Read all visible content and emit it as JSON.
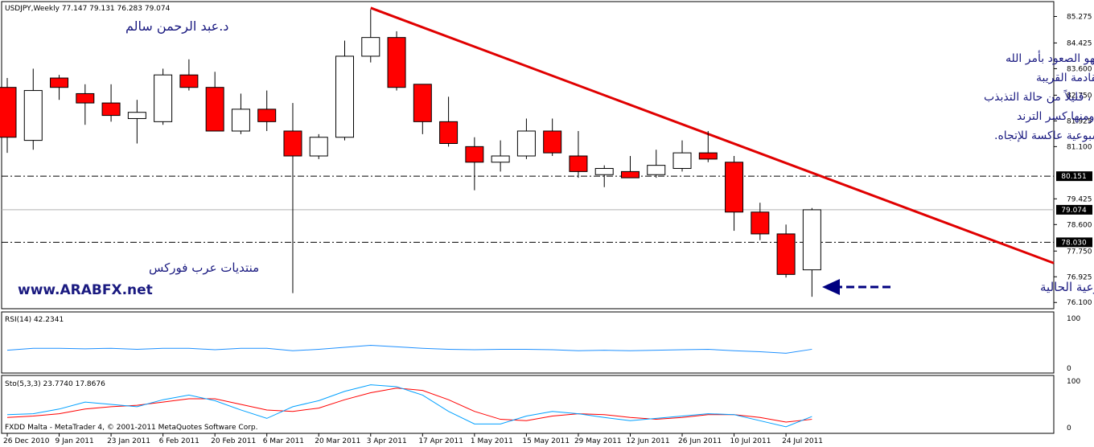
{
  "header": {
    "symbol_line": "USDJPY,Weekly  77.147 79.131 76.283 79.074",
    "author": "د.عبد الرحمن سالم",
    "footer": "FXDD Malta - MetaTrader 4, © 2001-2011 MetaQuotes Software Corp."
  },
  "brand": {
    "forum_name": "منتديات عرب فوركس",
    "site": "www.ARABFX.net"
  },
  "annotation": {
    "lines": [
      "أما عن الإتجاه المتوقع للزوج فهو الصعود بأمر الله",
      "وأن القاع المتكون هذا الأسبوع هو آخر قاع للفترة القادمة القريبة",
      "ومثل ما توقعنا ، قليلاً من حالة التذبذب",
      "إما لرسم شمعة أسبوعية إبتلاعية ومنها كسر الترند",
      "أو لرسم شمعة أسبوعية عاكسة للإتجاه."
    ],
    "current_candle_label": "الشمعة الأسبوعية الحالية"
  },
  "colors": {
    "bull_fill": "#ffffff",
    "bear_fill": "#ff0000",
    "trendline": "#e00000",
    "rsi_line": "#1e90ff",
    "sto_main": "#00a0ff",
    "sto_signal": "#ff0000",
    "annotation_text": "#1a1a80",
    "arrow": "#000080"
  },
  "chart_data": {
    "type": "candlestick",
    "symbol": "USDJPY",
    "timeframe": "Weekly",
    "price_axis": {
      "ylim": [
        75.9,
        85.7
      ],
      "ticks": [
        "85.275",
        "84.425",
        "83.600",
        "82.750",
        "81.925",
        "81.100",
        "79.425",
        "78.600",
        "77.750",
        "76.925",
        "76.100"
      ]
    },
    "price_labels": [
      {
        "value": 80.151,
        "text": "80.151",
        "line": "dashdot"
      },
      {
        "value": 79.074,
        "text": "79.074",
        "line": "solid"
      },
      {
        "value": 78.03,
        "text": "78.030",
        "line": "dashdot"
      }
    ],
    "x_axis_labels": [
      "26 Dec 2010",
      "9 Jan 2011",
      "23 Jan 2011",
      "6 Feb 2011",
      "20 Feb 2011",
      "6 Mar 2011",
      "20 Mar 2011",
      "3 Apr 2011",
      "17 Apr 2011",
      "1 May 2011",
      "15 May 2011",
      "29 May 2011",
      "12 Jun 2011",
      "26 Jun 2011",
      "10 Jul 2011",
      "24 Jul 2011"
    ],
    "candles": [
      {
        "o": 83.0,
        "h": 83.3,
        "l": 80.9,
        "c": 81.4
      },
      {
        "o": 81.3,
        "h": 83.6,
        "l": 81.0,
        "c": 82.9
      },
      {
        "o": 83.3,
        "h": 83.4,
        "l": 82.6,
        "c": 83.0
      },
      {
        "o": 82.8,
        "h": 83.1,
        "l": 81.8,
        "c": 82.5
      },
      {
        "o": 82.5,
        "h": 83.1,
        "l": 81.9,
        "c": 82.1
      },
      {
        "o": 82.0,
        "h": 82.6,
        "l": 81.2,
        "c": 82.2
      },
      {
        "o": 81.9,
        "h": 83.6,
        "l": 81.8,
        "c": 83.4
      },
      {
        "o": 83.4,
        "h": 83.9,
        "l": 82.9,
        "c": 83.0
      },
      {
        "o": 83.0,
        "h": 83.5,
        "l": 81.6,
        "c": 81.6
      },
      {
        "o": 81.6,
        "h": 82.8,
        "l": 81.5,
        "c": 82.3
      },
      {
        "o": 82.3,
        "h": 82.9,
        "l": 81.6,
        "c": 81.9
      },
      {
        "o": 81.6,
        "h": 82.5,
        "l": 76.4,
        "c": 80.8
      },
      {
        "o": 80.8,
        "h": 81.5,
        "l": 80.7,
        "c": 81.4
      },
      {
        "o": 81.4,
        "h": 84.5,
        "l": 81.3,
        "c": 84.0
      },
      {
        "o": 84.0,
        "h": 85.5,
        "l": 83.8,
        "c": 84.6
      },
      {
        "o": 84.6,
        "h": 84.8,
        "l": 82.9,
        "c": 83.0
      },
      {
        "o": 83.1,
        "h": 83.1,
        "l": 81.5,
        "c": 81.9
      },
      {
        "o": 81.9,
        "h": 82.7,
        "l": 81.1,
        "c": 81.2
      },
      {
        "o": 81.1,
        "h": 81.4,
        "l": 79.7,
        "c": 80.6
      },
      {
        "o": 80.6,
        "h": 81.3,
        "l": 80.3,
        "c": 80.8
      },
      {
        "o": 80.8,
        "h": 82.0,
        "l": 80.7,
        "c": 81.6
      },
      {
        "o": 81.6,
        "h": 82.0,
        "l": 80.8,
        "c": 80.9
      },
      {
        "o": 80.8,
        "h": 81.6,
        "l": 80.1,
        "c": 80.3
      },
      {
        "o": 80.2,
        "h": 80.5,
        "l": 79.8,
        "c": 80.4
      },
      {
        "o": 80.3,
        "h": 80.8,
        "l": 80.1,
        "c": 80.1
      },
      {
        "o": 80.2,
        "h": 81.0,
        "l": 80.1,
        "c": 80.5
      },
      {
        "o": 80.4,
        "h": 81.3,
        "l": 80.3,
        "c": 80.9
      },
      {
        "o": 80.9,
        "h": 81.6,
        "l": 80.6,
        "c": 80.7
      },
      {
        "o": 80.6,
        "h": 80.8,
        "l": 78.4,
        "c": 79.0
      },
      {
        "o": 79.0,
        "h": 79.3,
        "l": 78.1,
        "c": 78.3
      },
      {
        "o": 78.3,
        "h": 78.6,
        "l": 76.9,
        "c": 77.0
      },
      {
        "o": 77.147,
        "h": 79.131,
        "l": 76.283,
        "c": 79.074
      }
    ],
    "trendline": {
      "from": {
        "index": 14,
        "price": 85.55
      },
      "to": {
        "index": 41,
        "price": 77.15
      }
    },
    "rsi": {
      "label": "RSI(14) 42.2341",
      "period": 14,
      "last": 42.2341,
      "ticks": [
        "100",
        "0"
      ],
      "values": [
        36,
        40,
        40,
        39,
        40,
        38,
        40,
        40,
        37,
        40,
        40,
        35,
        38,
        42,
        46,
        43,
        40,
        38,
        37,
        38,
        38,
        37,
        35,
        36,
        35,
        36,
        37,
        38,
        35,
        33,
        30,
        38
      ]
    },
    "stochastic": {
      "label": "Sto(5,3,3) 23.7740 17.8676",
      "params": [
        5,
        3,
        3
      ],
      "main_last": 23.774,
      "signal_last": 17.8676,
      "ticks": [
        "100",
        "0"
      ],
      "main": [
        28,
        30,
        40,
        55,
        50,
        45,
        60,
        70,
        58,
        38,
        20,
        45,
        58,
        78,
        92,
        88,
        70,
        35,
        8,
        8,
        25,
        35,
        30,
        22,
        15,
        20,
        25,
        30,
        28,
        15,
        2,
        24
      ],
      "signal": [
        22,
        25,
        30,
        40,
        45,
        48,
        55,
        62,
        62,
        50,
        38,
        35,
        42,
        60,
        75,
        85,
        80,
        60,
        35,
        18,
        15,
        25,
        30,
        28,
        22,
        18,
        22,
        28,
        28,
        22,
        12,
        18
      ]
    }
  }
}
